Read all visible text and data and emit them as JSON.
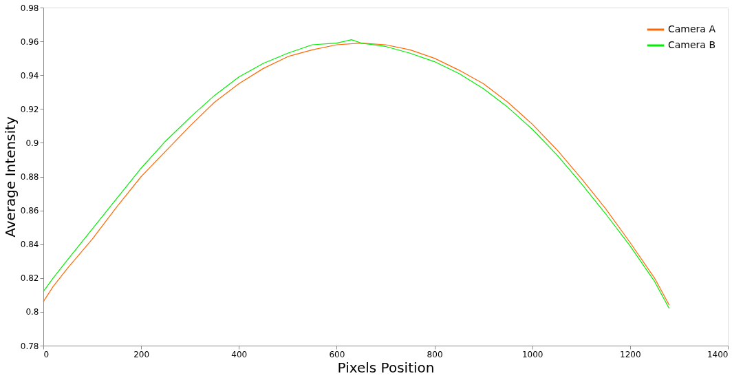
{
  "chart_data": {
    "type": "line",
    "xlabel": "Pixels Position",
    "ylabel": "Average Intensity",
    "xlim": [
      0,
      1400
    ],
    "xticks": [
      0,
      200,
      400,
      600,
      800,
      1000,
      1200,
      1400
    ],
    "ylim": [
      0.78,
      0.98
    ],
    "yticks": [
      0.78,
      0.8,
      0.82,
      0.84,
      0.86,
      0.88,
      0.9,
      0.92,
      0.94,
      0.96,
      0.98
    ],
    "grid": false,
    "legend": "top right",
    "marker": "none",
    "line_style": "solid",
    "series": [
      {
        "name": "Camera A",
        "color": "#ff6600",
        "x": [
          0,
          20,
          50,
          100,
          150,
          200,
          250,
          300,
          350,
          400,
          450,
          500,
          550,
          600,
          650,
          700,
          750,
          800,
          850,
          900,
          950,
          1000,
          1050,
          1100,
          1150,
          1200,
          1250,
          1280
        ],
        "values": [
          0.806,
          0.815,
          0.826,
          0.843,
          0.862,
          0.88,
          0.895,
          0.91,
          0.924,
          0.935,
          0.944,
          0.951,
          0.955,
          0.958,
          0.959,
          0.958,
          0.955,
          0.95,
          0.943,
          0.935,
          0.924,
          0.911,
          0.896,
          0.879,
          0.861,
          0.841,
          0.82,
          0.804
        ]
      },
      {
        "name": "Camera B",
        "color": "#00ee00",
        "x": [
          0,
          20,
          50,
          100,
          150,
          200,
          250,
          300,
          350,
          400,
          450,
          500,
          550,
          600,
          630,
          650,
          700,
          750,
          800,
          850,
          900,
          950,
          1000,
          1050,
          1100,
          1150,
          1200,
          1250,
          1280
        ],
        "values": [
          0.812,
          0.82,
          0.831,
          0.849,
          0.867,
          0.885,
          0.901,
          0.915,
          0.928,
          0.939,
          0.947,
          0.953,
          0.958,
          0.959,
          0.961,
          0.959,
          0.957,
          0.953,
          0.948,
          0.941,
          0.932,
          0.921,
          0.908,
          0.893,
          0.876,
          0.858,
          0.839,
          0.818,
          0.802
        ]
      }
    ]
  }
}
